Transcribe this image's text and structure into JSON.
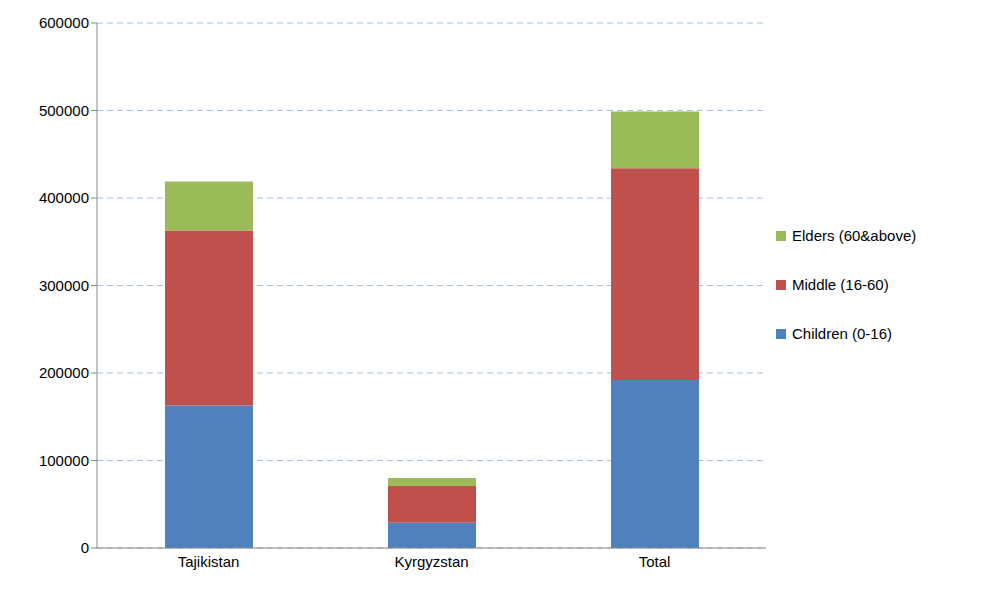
{
  "chart_data": {
    "type": "bar",
    "stacked": true,
    "grid": true,
    "legend": "right",
    "categories": [
      "Tajikistan",
      "Kyrgyzstan",
      "Total"
    ],
    "series": [
      {
        "name": "Children (0-16)",
        "color": "#4f81bd",
        "values": [
          163000,
          29000,
          192000
        ]
      },
      {
        "name": "Middle (16-60)",
        "color": "#c0504d",
        "values": [
          200000,
          42000,
          242000
        ]
      },
      {
        "name": "Elders (60&above)",
        "color": "#9bbb59",
        "values": [
          56000,
          9000,
          65000
        ]
      }
    ],
    "ylim": [
      0,
      600000
    ],
    "yticks": [
      0,
      100000,
      200000,
      300000,
      400000,
      500000,
      600000
    ]
  }
}
